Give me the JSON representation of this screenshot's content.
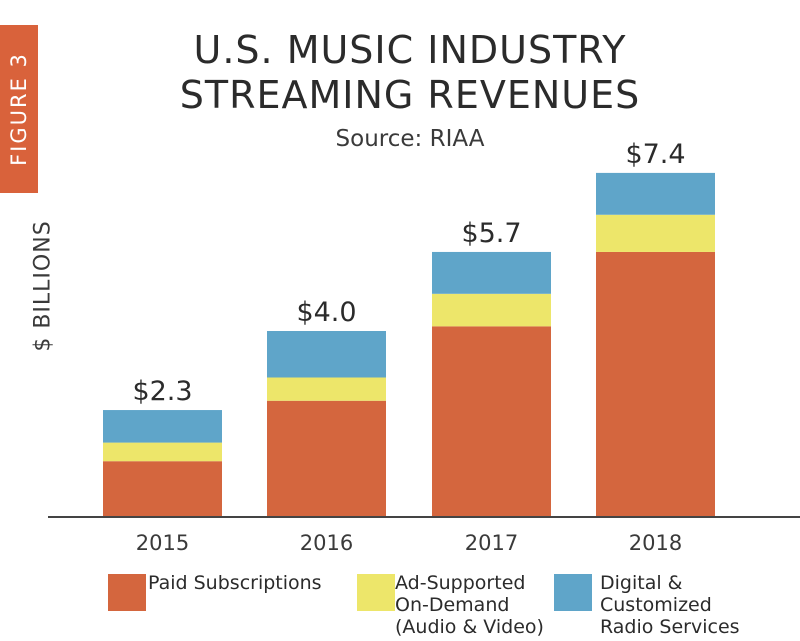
{
  "figure_label": "FIGURE 3",
  "chart_data": {
    "type": "bar",
    "stacked": true,
    "title": "U.S. MUSIC INDUSTRY STREAMING REVENUES",
    "title_lines": [
      "U.S. MUSIC INDUSTRY",
      "STREAMING REVENUES"
    ],
    "subtitle": "Source: RIAA",
    "xlabel": "",
    "ylabel": "$ BILLIONS",
    "ylim": [
      0,
      8
    ],
    "categories": [
      "2015",
      "2016",
      "2017",
      "2018"
    ],
    "totals": [
      2.3,
      4.0,
      5.7,
      7.4
    ],
    "total_labels": [
      "$2.3",
      "$4.0",
      "$5.7",
      "$7.4"
    ],
    "series": [
      {
        "name": "Paid Subscriptions",
        "legend_lines": [
          "Paid Subscriptions"
        ],
        "color": "#d4663e",
        "values": [
          1.2,
          2.5,
          4.1,
          5.7
        ]
      },
      {
        "name": "Ad-Supported On-Demand (Audio & Video)",
        "legend_lines": [
          "Ad-Supported",
          "On-Demand",
          "(Audio & Video)"
        ],
        "color": "#ede66a",
        "values": [
          0.4,
          0.5,
          0.7,
          0.8
        ]
      },
      {
        "name": "Digital & Customized Radio Services",
        "legend_lines": [
          "Digital &",
          "Customized",
          "Radio Services"
        ],
        "color": "#5fa5c9",
        "values": [
          0.7,
          1.0,
          0.9,
          0.9
        ]
      }
    ],
    "grid": false,
    "legend_position": "bottom"
  }
}
